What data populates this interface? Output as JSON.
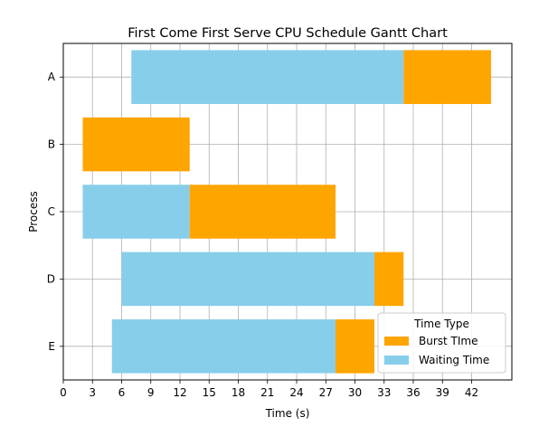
{
  "chart_data": {
    "type": "bar",
    "orientation": "horizontal",
    "stacked": true,
    "title": "First Come First Serve CPU Schedule Gantt Chart",
    "xlabel": "Time (s)",
    "ylabel": "Process",
    "xlim": [
      0,
      46
    ],
    "xticks": [
      0,
      3,
      6,
      9,
      12,
      15,
      18,
      21,
      24,
      27,
      30,
      33,
      36,
      39,
      42
    ],
    "categories": [
      "A",
      "B",
      "C",
      "D",
      "E"
    ],
    "grid": true,
    "legend": {
      "title": "Time Type",
      "placement": "lower-right",
      "entries": [
        "Burst TIme",
        "Waiting Time"
      ]
    },
    "series": [
      {
        "name": "Waiting Time",
        "color": "#87CEEB",
        "bars": [
          {
            "process": "A",
            "start": 7,
            "end": 35
          },
          {
            "process": "B",
            "start": 2,
            "end": 2
          },
          {
            "process": "C",
            "start": 2,
            "end": 13
          },
          {
            "process": "D",
            "start": 6,
            "end": 32
          },
          {
            "process": "E",
            "start": 5,
            "end": 28
          }
        ]
      },
      {
        "name": "Burst TIme",
        "color": "#FFA500",
        "bars": [
          {
            "process": "A",
            "start": 35,
            "end": 44
          },
          {
            "process": "B",
            "start": 2,
            "end": 13
          },
          {
            "process": "C",
            "start": 13,
            "end": 28
          },
          {
            "process": "D",
            "start": 32,
            "end": 35
          },
          {
            "process": "E",
            "start": 28,
            "end": 32
          }
        ]
      }
    ]
  }
}
